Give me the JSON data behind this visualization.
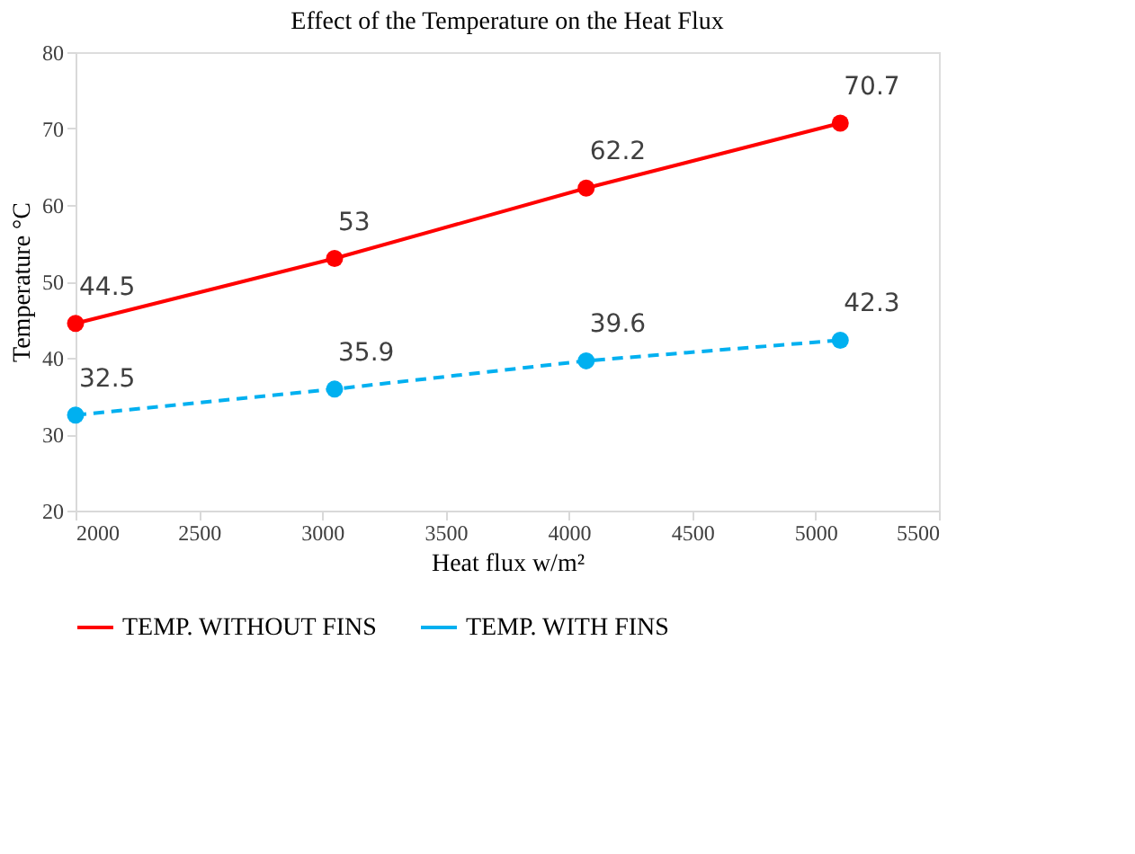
{
  "chart_data": {
    "type": "line",
    "title": "Effect  of the Temperature on the Heat Flux",
    "xlabel": "Heat flux w/m²",
    "ylabel": "Temperature °C",
    "xlim": [
      2000,
      5500
    ],
    "xticks": [
      2000,
      2500,
      3000,
      3500,
      4000,
      4500,
      5000,
      5500
    ],
    "ylim": [
      20,
      80
    ],
    "yticks": [
      20,
      30,
      40,
      50,
      60,
      70,
      80
    ],
    "x": [
      2000,
      3050,
      4070,
      5100
    ],
    "series": [
      {
        "name": "TEMP. WITHOUT FINS",
        "color": "#ff0000",
        "values": [
          44.5,
          53,
          62.2,
          70.7
        ],
        "line_style": "solid"
      },
      {
        "name": "TEMP. WITH FINS",
        "color": "#00b0f0",
        "values": [
          32.5,
          35.9,
          39.6,
          42.3
        ],
        "line_style": "dashed"
      }
    ],
    "marker": "circle",
    "data_labels": true,
    "legend": "bottom",
    "grid": false
  }
}
